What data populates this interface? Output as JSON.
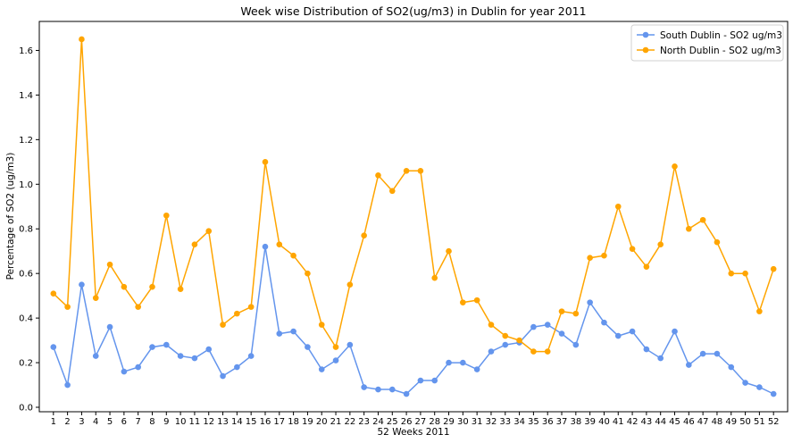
{
  "chart_data": {
    "type": "line",
    "title": "Week wise Distribution of SO2(ug/m3) in Dublin for year 2011",
    "xlabel": "52 Weeks 2011",
    "ylabel": "Percentage of SO2 (ug/m3)",
    "x": [
      1,
      2,
      3,
      4,
      5,
      6,
      7,
      8,
      9,
      10,
      11,
      12,
      13,
      14,
      15,
      16,
      17,
      18,
      19,
      20,
      21,
      22,
      23,
      24,
      25,
      26,
      27,
      28,
      29,
      30,
      31,
      32,
      33,
      34,
      35,
      36,
      37,
      38,
      39,
      40,
      41,
      42,
      43,
      44,
      45,
      46,
      47,
      48,
      49,
      50,
      51,
      52
    ],
    "x_ticks": [
      "1",
      "2",
      "3",
      "4",
      "5",
      "6",
      "7",
      "8",
      "9",
      "10",
      "11",
      "12",
      "13",
      "14",
      "15",
      "16",
      "17",
      "18",
      "19",
      "20",
      "21",
      "22",
      "23",
      "24",
      "25",
      "26",
      "27",
      "28",
      "29",
      "30",
      "31",
      "32",
      "33",
      "34",
      "35",
      "36",
      "37",
      "38",
      "39",
      "40",
      "41",
      "42",
      "43",
      "44",
      "45",
      "46",
      "47",
      "48",
      "49",
      "50",
      "51",
      "52"
    ],
    "ylim": [
      -0.02,
      1.73
    ],
    "y_ticks": [
      "0.0",
      "0.2",
      "0.4",
      "0.6",
      "0.8",
      "1.0",
      "1.2",
      "1.4",
      "1.6"
    ],
    "grid": false,
    "legend_position": "top-right",
    "series": [
      {
        "name": "South Dublin - SO2 ug/m3",
        "color": "#6495ED",
        "values": [
          0.27,
          0.1,
          0.55,
          0.23,
          0.36,
          0.16,
          0.18,
          0.27,
          0.28,
          0.23,
          0.22,
          0.26,
          0.14,
          0.18,
          0.23,
          0.72,
          0.33,
          0.34,
          0.27,
          0.17,
          0.21,
          0.28,
          0.09,
          0.08,
          0.08,
          0.06,
          0.12,
          0.12,
          0.2,
          0.2,
          0.17,
          0.25,
          0.28,
          0.29,
          0.36,
          0.37,
          0.33,
          0.28,
          0.47,
          0.38,
          0.32,
          0.34,
          0.26,
          0.22,
          0.34,
          0.19,
          0.24,
          0.24,
          0.18,
          0.11,
          0.09,
          0.06
        ]
      },
      {
        "name": "North Dublin - SO2 ug/m3",
        "color": "#FFA500",
        "values": [
          0.51,
          0.45,
          1.65,
          0.49,
          0.64,
          0.54,
          0.45,
          0.54,
          0.86,
          0.53,
          0.73,
          0.79,
          0.37,
          0.42,
          0.45,
          1.1,
          0.73,
          0.68,
          0.6,
          0.37,
          0.27,
          0.55,
          0.77,
          1.04,
          0.97,
          1.06,
          1.06,
          0.58,
          0.7,
          0.47,
          0.48,
          0.37,
          0.32,
          0.3,
          0.25,
          0.25,
          0.43,
          0.42,
          0.67,
          0.68,
          0.9,
          0.71,
          0.63,
          0.73,
          1.08,
          0.8,
          0.84,
          0.74,
          0.6,
          0.6,
          0.43,
          0.62
        ]
      }
    ]
  }
}
